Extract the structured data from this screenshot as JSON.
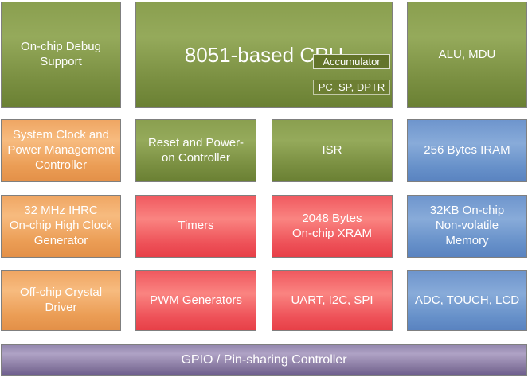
{
  "palette": {
    "green": "#83984a",
    "orange": "#eda15d",
    "red": "#ef5359",
    "blue": "#6b93cb",
    "purple": "#8d80ab",
    "block_border": "#7f7f7f",
    "text": "#ffffff"
  },
  "cpu": {
    "label": "8051-based CPU",
    "registers": [
      "Accumulator",
      "PC, SP, DPTR"
    ]
  },
  "blocks": {
    "debug": {
      "label": "On-chip Debug\nSupport"
    },
    "alu": {
      "label": "ALU, MDU"
    },
    "sysclk": {
      "label": "System Clock and\nPower Management\nController"
    },
    "reset": {
      "label": "Reset and Power-\non Controller"
    },
    "isr": {
      "label": "ISR"
    },
    "iram": {
      "label": "256 Bytes IRAM"
    },
    "ihrc": {
      "label": "32 MHz IHRC\nOn-chip High Clock\nGenerator"
    },
    "timers": {
      "label": "Timers"
    },
    "xram": {
      "label": "2048 Bytes\nOn-chip XRAM"
    },
    "nvm": {
      "label": "32KB On-chip\nNon-volatile\nMemory"
    },
    "xtal": {
      "label": "Off-chip Crystal\nDriver"
    },
    "pwm": {
      "label": "PWM Generators"
    },
    "uart": {
      "label": "UART, I2C, SPI"
    },
    "adc": {
      "label": "ADC, TOUCH, LCD"
    }
  },
  "gpio_bar": {
    "label": "GPIO / Pin-sharing Controller"
  }
}
